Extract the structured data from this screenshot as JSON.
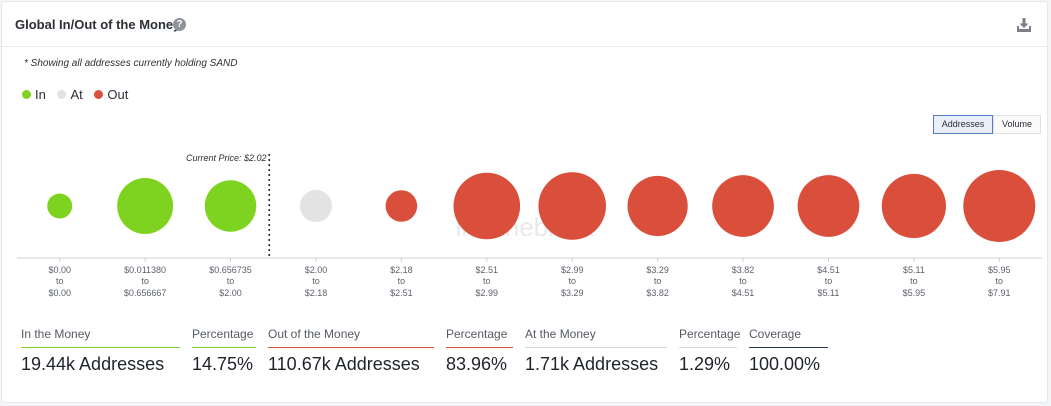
{
  "header": {
    "title": "Global In/Out of the Money",
    "help": "?"
  },
  "note": "* Showing all addresses currently holding SAND",
  "legend": [
    {
      "label": "In",
      "color": "#7ed321"
    },
    {
      "label": "At",
      "color": "#e3e3e3"
    },
    {
      "label": "Out",
      "color": "#d94f3b"
    }
  ],
  "toggle": {
    "addresses": "Addresses",
    "volume": "Volume",
    "selected": "Addresses"
  },
  "watermark": "intotheblock",
  "chart_data": {
    "type": "bubble",
    "title": "Global In/Out of the Money",
    "current_price_label": "Current Price: $2.02",
    "current_price_between_index": 3,
    "categories": [
      {
        "from": "$0.00",
        "to": "$0.00",
        "status": "in",
        "value": 2
      },
      {
        "from": "$0.011380",
        "to": "$0.656667",
        "status": "in",
        "value": 10
      },
      {
        "from": "$0.656735",
        "to": "$2.00",
        "status": "in",
        "value": 8.5
      },
      {
        "from": "$2.00",
        "to": "$2.18",
        "status": "at",
        "value": 3.3
      },
      {
        "from": "$2.18",
        "to": "$2.51",
        "status": "out",
        "value": 3.2
      },
      {
        "from": "$2.51",
        "to": "$2.99",
        "status": "out",
        "value": 14.2
      },
      {
        "from": "$2.99",
        "to": "$3.29",
        "status": "out",
        "value": 14.6
      },
      {
        "from": "$3.29",
        "to": "$3.82",
        "status": "out",
        "value": 11.6
      },
      {
        "from": "$3.82",
        "to": "$4.51",
        "status": "out",
        "value": 12.2
      },
      {
        "from": "$4.51",
        "to": "$5.11",
        "status": "out",
        "value": 12.2
      },
      {
        "from": "$5.11",
        "to": "$5.95",
        "status": "out",
        "value": 13.2
      },
      {
        "from": "$5.95",
        "to": "$7.91",
        "status": "out",
        "value": 16.6
      }
    ],
    "to_label": "to",
    "colors": {
      "in": "#7ed321",
      "at": "#e3e3e3",
      "out": "#d94f3b"
    }
  },
  "stats": [
    {
      "label": "In the Money",
      "value": "19.44k Addresses",
      "color": "#7ed321"
    },
    {
      "label": "Percentage",
      "value": "14.75%",
      "color": "#7ed321"
    },
    {
      "label": "Out of the Money",
      "value": "110.67k Addresses",
      "color": "#d94f3b"
    },
    {
      "label": "Percentage",
      "value": "83.96%",
      "color": "#d94f3b"
    },
    {
      "label": "At the Money",
      "value": "1.71k Addresses",
      "color": "#d6d8dc"
    },
    {
      "label": "Percentage",
      "value": "1.29%",
      "color": "#d6d8dc"
    },
    {
      "label": "Coverage",
      "value": "100.00%",
      "color": "#2b3a55"
    }
  ]
}
